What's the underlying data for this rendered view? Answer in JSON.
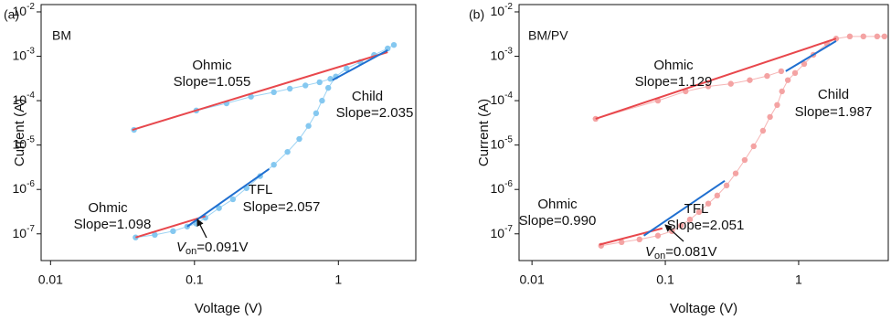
{
  "chart_data": [
    {
      "type": "scatter",
      "panel_label": "(a)",
      "title": "BM",
      "title_color": "#2a7de1",
      "x_label": "Voltage (V)",
      "y_label": "Current (A)",
      "log_x": true,
      "log_y": true,
      "xlim": [
        0.0086,
        3.45
      ],
      "ylim": [
        2.5e-08,
        0.0146
      ],
      "xticks": [
        0.01,
        0.1,
        1
      ],
      "yticks": [
        {
          "value": 1e-07,
          "label": "10-7"
        },
        {
          "value": 1e-06,
          "label": "10-6"
        },
        {
          "value": 1e-05,
          "label": "10-5"
        },
        {
          "value": 0.0001,
          "label": "10-4"
        },
        {
          "value": 0.001,
          "label": "10-3"
        },
        {
          "value": 0.01,
          "label": "10-2"
        }
      ],
      "series": [
        {
          "color": "#85c8f0",
          "x": [
            0.039,
            0.053,
            0.071,
            0.089,
            0.103,
            0.119,
            0.148,
            0.185,
            0.23,
            0.286,
            0.356,
            0.443,
            0.535,
            0.62,
            0.7,
            0.77,
            0.85,
            0.96,
            1.14,
            1.42,
            1.77,
            2.2,
            2.43
          ],
          "values": [
            8.3e-08,
            9.5e-08,
            1.15e-07,
            1.46e-07,
            1.7e-07,
            2.3e-07,
            3.8e-07,
            6e-07,
            1.07e-06,
            2e-06,
            3.6e-06,
            7e-06,
            1.37e-05,
            2.7e-05,
            5.2e-05,
            0.0001,
            0.000194,
            0.00035,
            0.00053,
            0.00074,
            0.00107,
            0.0015,
            0.0018
          ]
        },
        {
          "color": "#85c8f0",
          "x": [
            0.038,
            0.103,
            0.167,
            0.247,
            0.356,
            0.46,
            0.59,
            0.74,
            0.88
          ],
          "values": [
            2.2e-05,
            6e-05,
            8.7e-05,
            0.000123,
            0.000155,
            0.000186,
            0.00022,
            0.00026,
            0.00031
          ]
        }
      ],
      "fits": [
        {
          "color": "#e8474c",
          "x": [
            0.037,
            2.2
          ],
          "values": [
            2.2e-05,
            0.00124
          ]
        },
        {
          "color": "#e8474c",
          "x": [
            0.039,
            0.119
          ],
          "values": [
            8.3e-08,
            2.5e-07
          ]
        },
        {
          "color": "#1f6fd0",
          "x": [
            0.089,
            0.33
          ],
          "values": [
            1.46e-07,
            2.9e-06
          ]
        },
        {
          "color": "#1f6fd0",
          "x": [
            0.91,
            2.2
          ],
          "values": [
            0.00029,
            0.00137
          ]
        }
      ],
      "annotations": [
        {
          "text": "Ohmic",
          "color": "#e8474c"
        },
        {
          "text": "Slope=1.055",
          "color": "#e8474c"
        },
        {
          "text": "Child",
          "color": "#1f6fd0"
        },
        {
          "text": "Slope=2.035",
          "color": "#1f6fd0"
        },
        {
          "text": "TFL",
          "color": "#1f6fd0"
        },
        {
          "text": "Slope=2.057",
          "color": "#1f6fd0"
        },
        {
          "text": "Ohmic",
          "color": "#e8474c"
        },
        {
          "text": "Slope=1.098",
          "color": "#e8474c"
        }
      ],
      "onset_label": [
        "V",
        "on",
        "=0.091V"
      ]
    },
    {
      "type": "scatter",
      "panel_label": "(b)",
      "title": "BM/PV",
      "title_color": "#e8474c",
      "x_label": "Voltage (V)",
      "y_label": "Current (A)",
      "log_x": true,
      "log_y": true,
      "xlim": [
        0.008,
        4.7
      ],
      "ylim": [
        2.5e-08,
        0.0146
      ],
      "xticks": [
        0.01,
        0.1,
        1
      ],
      "yticks": [
        {
          "value": 1e-07,
          "label": "10-7"
        },
        {
          "value": 1e-06,
          "label": "10-6"
        },
        {
          "value": 1e-05,
          "label": "10-5"
        },
        {
          "value": 0.0001,
          "label": "10-4"
        },
        {
          "value": 0.001,
          "label": "10-3"
        },
        {
          "value": 0.01,
          "label": "10-2"
        }
      ],
      "series": [
        {
          "color": "#f4a3a3",
          "x": [
            0.033,
            0.047,
            0.064,
            0.088,
            0.112,
            0.131,
            0.153,
            0.179,
            0.21,
            0.245,
            0.288,
            0.337,
            0.394,
            0.46,
            0.54,
            0.61,
            0.69,
            0.75,
            0.83,
            0.94,
            1.1,
            1.29,
            1.63,
            1.91,
            2.42,
            3.06,
            3.88,
            4.4
          ],
          "values": [
            5.4e-08,
            6.5e-08,
            7.5e-08,
            9.1e-08,
            1.15e-07,
            1.53e-07,
            2.1e-07,
            3.1e-07,
            4.8e-07,
            7.3e-07,
            1.23e-06,
            2.3e-06,
            4.6e-06,
            9.4e-06,
            2.1e-05,
            4.3e-05,
            8e-05,
            0.000162,
            0.00029,
            0.00042,
            0.00067,
            0.00108,
            0.0019,
            0.0025,
            0.0028,
            0.0028,
            0.0028,
            0.0028
          ]
        },
        {
          "color": "#f4a3a3",
          "x": [
            0.03,
            0.088,
            0.142,
            0.21,
            0.31,
            0.43,
            0.58,
            0.74
          ],
          "values": [
            3.9e-05,
            0.0001,
            0.000162,
            0.00021,
            0.00024,
            0.00029,
            0.00036,
            0.00046
          ]
        }
      ],
      "fits": [
        {
          "color": "#e8474c",
          "x": [
            0.03,
            1.91
          ],
          "values": [
            3.9e-05,
            0.0025
          ]
        },
        {
          "color": "#e8474c",
          "x": [
            0.032,
            0.095
          ],
          "values": [
            5.7e-08,
            1.33e-07
          ]
        },
        {
          "color": "#1f6fd0",
          "x": [
            0.069,
            0.279
          ],
          "values": [
            9.1e-08,
            1.56e-06
          ]
        },
        {
          "color": "#1f6fd0",
          "x": [
            0.8,
            1.91
          ],
          "values": [
            0.00046,
            0.0022
          ]
        }
      ],
      "annotations": [
        {
          "text": "Ohmic",
          "color": "#e8474c"
        },
        {
          "text": "Slope=1.129",
          "color": "#e8474c"
        },
        {
          "text": "Child",
          "color": "#1f6fd0"
        },
        {
          "text": "Slope=1.987",
          "color": "#1f6fd0"
        },
        {
          "text": "TFL",
          "color": "#1f6fd0"
        },
        {
          "text": "Slope=2.051",
          "color": "#1f6fd0"
        },
        {
          "text": "Ohmic",
          "color": "#e8474c"
        },
        {
          "text": "Slope=0.990",
          "color": "#e8474c"
        }
      ],
      "onset_label": [
        "V",
        "on",
        "=0.081V"
      ]
    }
  ]
}
